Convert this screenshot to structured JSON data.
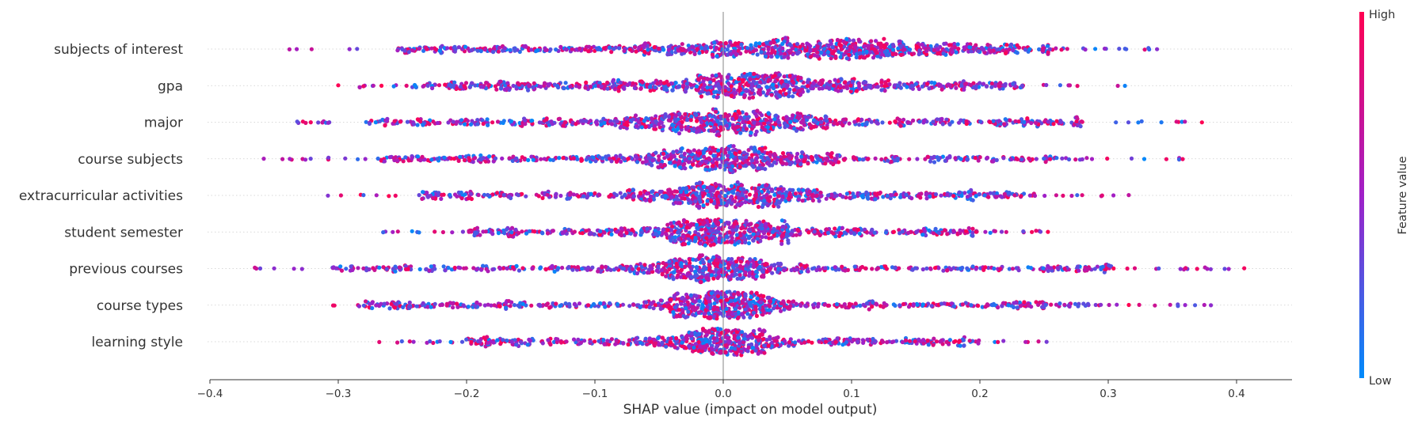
{
  "chart_data": {
    "type": "scatter",
    "subtype": "shap-beeswarm",
    "xlabel": "SHAP value (impact on model output)",
    "xlim": [
      -0.41,
      0.446
    ],
    "xticks": [
      -0.4,
      -0.3,
      -0.2,
      -0.1,
      0.0,
      0.1,
      0.2,
      0.3,
      0.4
    ],
    "xtick_labels": [
      "−0.4",
      "−0.3",
      "−0.2",
      "−0.1",
      "0.0",
      "0.1",
      "0.2",
      "0.3",
      "0.4"
    ],
    "features": [
      {
        "name": "subjects of interest",
        "min": -0.338,
        "max": 0.338,
        "center": 0.08,
        "spread": 0.13,
        "density": 1.0
      },
      {
        "name": "gpa",
        "min": -0.3,
        "max": 0.313,
        "center": 0.02,
        "spread": 0.1,
        "density": 0.95
      },
      {
        "name": "major",
        "min": -0.332,
        "max": 0.373,
        "center": 0.0,
        "spread": 0.09,
        "density": 0.95
      },
      {
        "name": "course subjects",
        "min": -0.358,
        "max": 0.358,
        "center": 0.0,
        "spread": 0.07,
        "density": 0.85
      },
      {
        "name": "extracurricular activities",
        "min": -0.308,
        "max": 0.316,
        "center": 0.01,
        "spread": 0.07,
        "density": 0.85
      },
      {
        "name": "student semester",
        "min": -0.265,
        "max": 0.253,
        "center": 0.0,
        "spread": 0.06,
        "density": 0.8
      },
      {
        "name": "previous courses",
        "min": -0.365,
        "max": 0.406,
        "center": 0.0,
        "spread": 0.06,
        "density": 0.8
      },
      {
        "name": "course types",
        "min": -0.304,
        "max": 0.38,
        "center": 0.0,
        "spread": 0.05,
        "density": 0.9
      },
      {
        "name": "learning style",
        "min": -0.268,
        "max": 0.252,
        "center": 0.0,
        "spread": 0.05,
        "density": 0.75
      }
    ],
    "colorbar": {
      "label": "Feature value",
      "high_label": "High",
      "low_label": "Low",
      "high_color": "#ff0052",
      "mid_color": "#a020c8",
      "low_color": "#008bfb"
    },
    "zero_line": true,
    "row_gridlines": "dotted"
  }
}
